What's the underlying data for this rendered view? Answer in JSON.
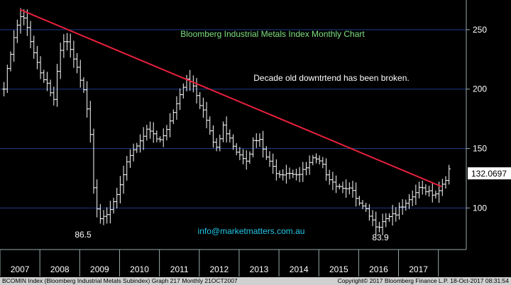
{
  "chart_data": {
    "type": "bar",
    "subtype": "ohlc-monthly",
    "title": "Bloomberg Industrial Metals Index Monthly Chart",
    "annotations": {
      "note": "Decade old downtrtend has been broken.",
      "contact": "info@marketmatters.com.au",
      "low_label_1": "86.5",
      "low_label_2": "83.9"
    },
    "last_price_label": "132.0697",
    "x_tick_labels": [
      "2007",
      "2008",
      "2009",
      "2010",
      "2011",
      "2012",
      "2013",
      "2014",
      "2015",
      "2016",
      "2017"
    ],
    "y_tick_labels": [
      "250",
      "200",
      "150",
      "100"
    ],
    "y_ticks": [
      250,
      200,
      150,
      100
    ],
    "ylim": [
      65,
      275
    ],
    "xlim": [
      2006.5,
      2018.2
    ],
    "grid": true,
    "trendline": {
      "x": [
        2007.0,
        2017.58
      ],
      "y": [
        267,
        118
      ]
    },
    "series": [
      {
        "values": [
          [
            2006.6,
            200
          ],
          [
            2006.8,
            235
          ],
          [
            2006.95,
            255
          ],
          [
            2007.05,
            262
          ],
          [
            2007.2,
            250
          ],
          [
            2007.35,
            232
          ],
          [
            2007.5,
            215
          ],
          [
            2007.65,
            208
          ],
          [
            2007.85,
            190
          ],
          [
            2008.0,
            230
          ],
          [
            2008.15,
            242
          ],
          [
            2008.3,
            228
          ],
          [
            2008.45,
            215
          ],
          [
            2008.6,
            202
          ],
          [
            2008.75,
            172
          ],
          [
            2008.85,
            120
          ],
          [
            2008.95,
            98
          ],
          [
            2009.05,
            90
          ],
          [
            2009.15,
            90
          ],
          [
            2009.3,
            100
          ],
          [
            2009.45,
            112
          ],
          [
            2009.6,
            125
          ],
          [
            2009.75,
            145
          ],
          [
            2009.9,
            152
          ],
          [
            2010.05,
            158
          ],
          [
            2010.2,
            170
          ],
          [
            2010.35,
            160
          ],
          [
            2010.5,
            155
          ],
          [
            2010.65,
            163
          ],
          [
            2010.8,
            175
          ],
          [
            2010.95,
            190
          ],
          [
            2011.05,
            200
          ],
          [
            2011.2,
            210
          ],
          [
            2011.35,
            205
          ],
          [
            2011.5,
            190
          ],
          [
            2011.65,
            178
          ],
          [
            2011.8,
            158
          ],
          [
            2011.95,
            150
          ],
          [
            2012.1,
            168
          ],
          [
            2012.25,
            162
          ],
          [
            2012.4,
            150
          ],
          [
            2012.55,
            145
          ],
          [
            2012.7,
            142
          ],
          [
            2012.85,
            155
          ],
          [
            2013.0,
            157
          ],
          [
            2013.15,
            145
          ],
          [
            2013.3,
            135
          ],
          [
            2013.5,
            130
          ],
          [
            2013.7,
            131
          ],
          [
            2013.9,
            130
          ],
          [
            2014.05,
            128
          ],
          [
            2014.2,
            134
          ],
          [
            2014.35,
            140
          ],
          [
            2014.5,
            138
          ],
          [
            2014.65,
            132
          ],
          [
            2014.8,
            125
          ],
          [
            2015.0,
            118
          ],
          [
            2015.15,
            120
          ],
          [
            2015.35,
            112
          ],
          [
            2015.5,
            103
          ],
          [
            2015.7,
            96
          ],
          [
            2015.85,
            88
          ],
          [
            2016.0,
            86
          ],
          [
            2016.15,
            92
          ],
          [
            2016.3,
            95
          ],
          [
            2016.45,
            96
          ],
          [
            2016.6,
            100
          ],
          [
            2016.75,
            103
          ],
          [
            2016.9,
            112
          ],
          [
            2017.05,
            116
          ],
          [
            2017.2,
            116
          ],
          [
            2017.35,
            113
          ],
          [
            2017.5,
            114
          ],
          [
            2017.65,
            124
          ],
          [
            2017.78,
            132
          ]
        ]
      }
    ]
  },
  "footer": {
    "left": "BCOMIN Index (Bloomberg Industrial Metals Subindex) Graph 217  Monthly 21OCT2007",
    "right": "Copyright© 2017 Bloomberg Finance L.P.      18-Oct-2017 08:31:54"
  },
  "colors": {
    "background": "#000000",
    "bars": "#ffffff",
    "grid": "#1f3a8a",
    "trendline": "#e8203c",
    "title": "#7fe07f",
    "contact": "#22c8e8",
    "footer_bg": "#d0d0d0"
  }
}
